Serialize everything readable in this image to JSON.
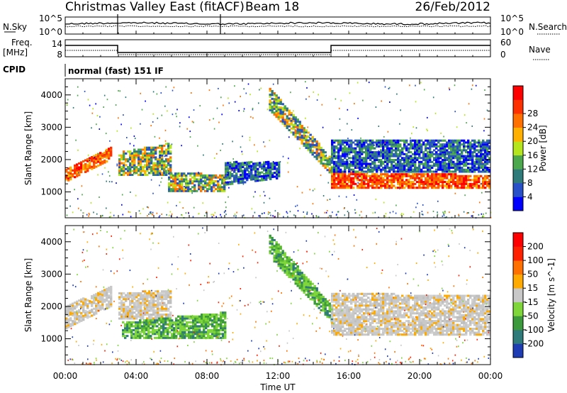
{
  "header": {
    "station": "Christmas Valley East (fitACF)",
    "beam": "Beam 18",
    "date": "26/Feb/2012"
  },
  "top_panels": {
    "nsky_label": "N.Sky",
    "nsearch_label": "N.Search",
    "nsky_ticks": [
      "10^5",
      "10^0"
    ],
    "nsearch_ticks": [
      "10^5",
      "10^0"
    ],
    "freq_label_line1": "Freq.",
    "freq_label_line2": "[MHz]",
    "freq_ticks": [
      "14",
      "8"
    ],
    "nave_label": "Nave",
    "nave_ticks": [
      "60",
      "0"
    ],
    "cpid_label": "CPID",
    "cpid_text": "normal (fast) 151 IF"
  },
  "x_axis": {
    "label": "Time UT",
    "ticks": [
      "00:00",
      "04:00",
      "08:00",
      "12:00",
      "16:00",
      "20:00",
      "00:00"
    ]
  },
  "chart_data": [
    {
      "type": "heatmap",
      "name": "power",
      "ylabel": "Slant Range [km]",
      "yticks": [
        "1000",
        "2000",
        "3000",
        "4000"
      ],
      "xlim": [
        0,
        24
      ],
      "ylim": [
        200,
        4500
      ],
      "colorbar_label": "Power [dB]",
      "colorbar_ticks": [
        "4",
        "8",
        "12",
        "16",
        "20",
        "24",
        "28"
      ],
      "colorbar_colors": [
        "#0000ff",
        "#2850c8",
        "#2f7a7a",
        "#4ca84c",
        "#b5e61d",
        "#ffb000",
        "#ff7000",
        "#ff3000",
        "#ff0000"
      ],
      "bands": [
        {
          "t": [
            0.0,
            2.6
          ],
          "low": [
            1300,
            2000
          ],
          "high": [
            1700,
            2400
          ],
          "level": "high"
        },
        {
          "t": [
            3.0,
            6.0
          ],
          "low": [
            1500,
            1500
          ],
          "high": [
            2200,
            2500
          ],
          "level": "mid"
        },
        {
          "t": [
            5.8,
            9.0
          ],
          "low": [
            1000,
            1000
          ],
          "high": [
            1600,
            1500
          ],
          "level": "mid"
        },
        {
          "t": [
            9.0,
            12.0
          ],
          "low": [
            1200,
            1400
          ],
          "high": [
            1900,
            1900
          ],
          "level": "low"
        },
        {
          "t": [
            11.5,
            15.0
          ],
          "low": [
            3500,
            1500
          ],
          "high": [
            4200,
            2000
          ],
          "level": "mid"
        },
        {
          "t": [
            15.0,
            24.0
          ],
          "low": [
            1100,
            1100
          ],
          "high": [
            1600,
            1500
          ],
          "level": "high"
        },
        {
          "t": [
            15.0,
            24.0
          ],
          "low": [
            1600,
            1600
          ],
          "high": [
            2600,
            2600
          ],
          "level": "low"
        }
      ]
    },
    {
      "type": "heatmap",
      "name": "velocity",
      "ylabel": "Slant Range [km]",
      "yticks": [
        "1000",
        "2000",
        "3000",
        "4000"
      ],
      "xlim": [
        0,
        24
      ],
      "ylim": [
        200,
        4500
      ],
      "colorbar_label": "Velocity [m s^-1]",
      "colorbar_ticks": [
        "200",
        "100",
        "50",
        "15",
        "-15",
        "-50",
        "-100",
        "-200"
      ],
      "colorbar_colors": [
        "#1e3cb4",
        "#2f7a7a",
        "#3c9a3c",
        "#7ed63a",
        "#c8c8c8",
        "#ffaa00",
        "#ff7000",
        "#ff2000",
        "#ff0000"
      ],
      "bands": [
        {
          "t": [
            0.0,
            2.6
          ],
          "low": [
            1300,
            2000
          ],
          "high": [
            2000,
            2600
          ],
          "level": "zero"
        },
        {
          "t": [
            3.0,
            6.0
          ],
          "low": [
            1600,
            1600
          ],
          "high": [
            2400,
            2500
          ],
          "level": "zero"
        },
        {
          "t": [
            3.2,
            9.0
          ],
          "low": [
            1000,
            1000
          ],
          "high": [
            1500,
            1800
          ],
          "level": "pos"
        },
        {
          "t": [
            11.5,
            15.0
          ],
          "low": [
            3500,
            1500
          ],
          "high": [
            4200,
            2000
          ],
          "level": "pos"
        },
        {
          "t": [
            15.0,
            24.0
          ],
          "low": [
            1100,
            1100
          ],
          "high": [
            2400,
            2300
          ],
          "level": "zero"
        }
      ]
    }
  ]
}
